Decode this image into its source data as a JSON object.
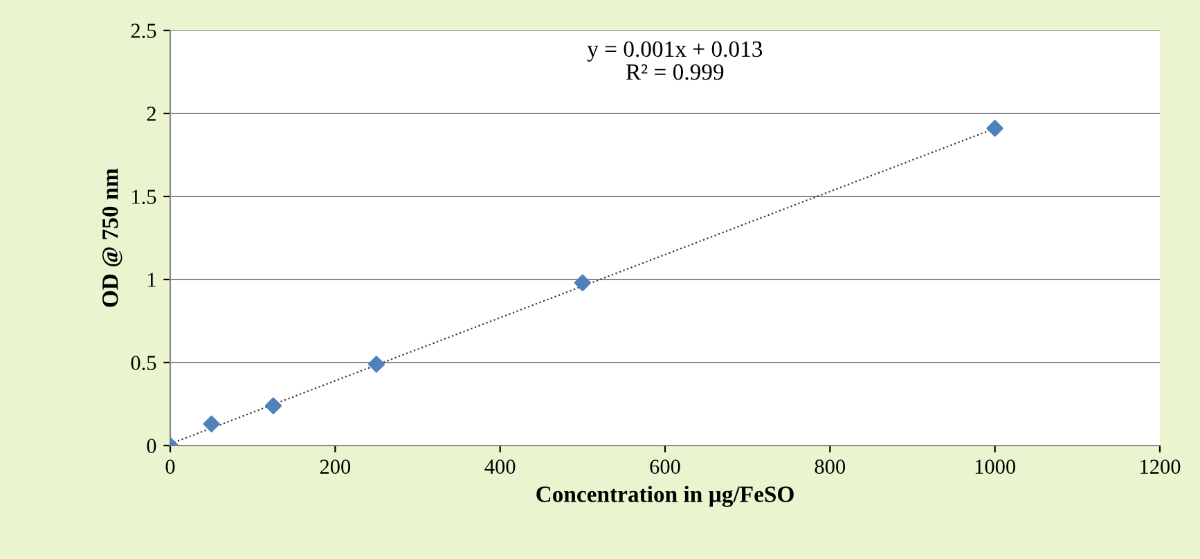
{
  "chart_data": {
    "type": "scatter",
    "xlabel": "Concentration in µg/FeSO",
    "ylabel": "OD @ 750 nm",
    "series": [
      {
        "color": "#4f81bd",
        "marker": "diamond",
        "x": [
          0,
          50,
          125,
          250,
          500,
          1000
        ],
        "values": [
          0,
          0.13,
          0.24,
          0.49,
          0.98,
          1.91
        ]
      },
      {
        "type": "line",
        "color": "#333333",
        "line_style": "dotted",
        "marker": "none",
        "x": [
          0,
          1000
        ],
        "values": [
          0.01,
          1.91
        ]
      }
    ],
    "annotations": [
      "y = 0.001x + 0.013",
      "R² = 0.999"
    ],
    "xlim": [
      0,
      1200
    ],
    "xticks": [
      0,
      200,
      400,
      600,
      800,
      1000,
      1200
    ],
    "ylim": [
      0,
      2.5
    ],
    "yticks": [
      0,
      0.5,
      1,
      1.5,
      2,
      2.5
    ],
    "grid": "y",
    "legend": false
  }
}
